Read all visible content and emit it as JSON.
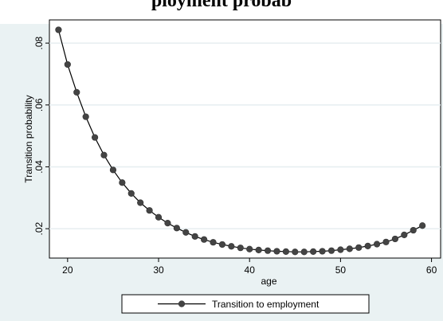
{
  "title": "ployment probab",
  "chart_data": {
    "type": "line",
    "title": "ployment probab",
    "xlabel": "age",
    "ylabel": "Transition probability",
    "xlim": [
      18,
      61
    ],
    "ylim": [
      0.0105,
      0.0875
    ],
    "x_ticks": [
      20,
      30,
      40,
      50,
      60
    ],
    "x_tick_labels": [
      "20",
      "30",
      "40",
      "50",
      "60"
    ],
    "y_ticks": [
      0.02,
      0.04,
      0.06,
      0.08
    ],
    "y_tick_labels": [
      ".02",
      ".04",
      ".06",
      ".08"
    ],
    "grid": true,
    "legend_position": "bottom",
    "series": [
      {
        "name": "Transition to employment",
        "color": "#444444",
        "marker": "circle",
        "x": [
          19,
          20,
          21,
          22,
          23,
          24,
          25,
          26,
          27,
          28,
          29,
          30,
          31,
          32,
          33,
          34,
          35,
          36,
          37,
          38,
          39,
          40,
          41,
          42,
          43,
          44,
          45,
          46,
          47,
          48,
          49,
          50,
          51,
          52,
          53,
          54,
          55,
          56,
          57,
          58,
          59
        ],
        "y": [
          0.0843,
          0.0731,
          0.0641,
          0.0562,
          0.0495,
          0.0438,
          0.039,
          0.0349,
          0.0314,
          0.0284,
          0.0259,
          0.0237,
          0.0218,
          0.0202,
          0.0188,
          0.0175,
          0.0165,
          0.0156,
          0.0149,
          0.0143,
          0.0138,
          0.0134,
          0.0131,
          0.0129,
          0.0127,
          0.0126,
          0.0125,
          0.0125,
          0.0126,
          0.0127,
          0.0129,
          0.0132,
          0.0135,
          0.0139,
          0.0144,
          0.015,
          0.0157,
          0.0167,
          0.018,
          0.0195,
          0.021
        ]
      }
    ]
  }
}
